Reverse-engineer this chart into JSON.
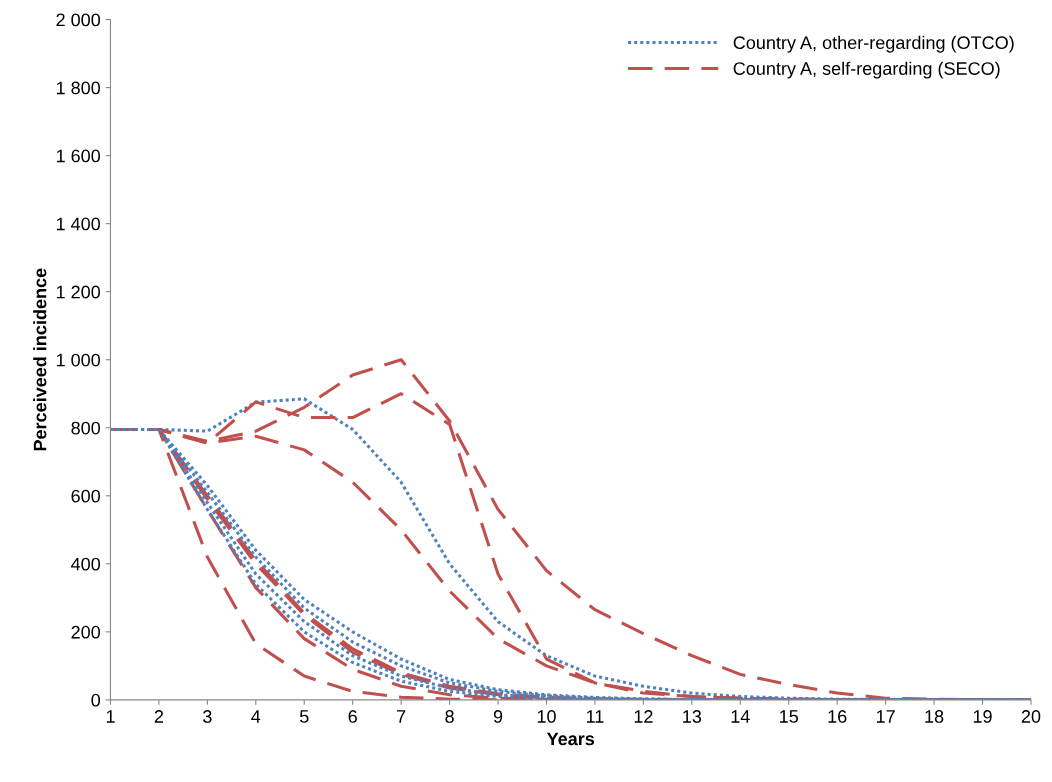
{
  "chart_data": {
    "type": "line",
    "xlabel": "Years",
    "ylabel": "Perceiveed incidence",
    "x": [
      1,
      2,
      3,
      4,
      5,
      6,
      7,
      8,
      9,
      10,
      11,
      12,
      13,
      14,
      15,
      16,
      17,
      18,
      19,
      20
    ],
    "xlim": [
      1,
      20
    ],
    "xticks": [
      1,
      2,
      3,
      4,
      5,
      6,
      7,
      8,
      9,
      10,
      11,
      12,
      13,
      14,
      15,
      16,
      17,
      18,
      19,
      20
    ],
    "ylim": [
      0,
      2000
    ],
    "yticks": [
      {
        "value": 0,
        "label": "0"
      },
      {
        "value": 200,
        "label": "200"
      },
      {
        "value": 400,
        "label": "400"
      },
      {
        "value": 600,
        "label": "600"
      },
      {
        "value": 800,
        "label": "800"
      },
      {
        "value": 1000,
        "label": "1 000"
      },
      {
        "value": 1200,
        "label": "1 200"
      },
      {
        "value": 1400,
        "label": "1 400"
      },
      {
        "value": 1600,
        "label": "1 600"
      },
      {
        "value": 1800,
        "label": "1 800"
      },
      {
        "value": 2000,
        "label": "2 000"
      }
    ],
    "grid": false,
    "legend": "top right",
    "marker": "none",
    "series": [
      {
        "name": "Country A, other-regarding (OTCO)",
        "color": "#4f81bd",
        "line_style": "dotted",
        "values": [
          795,
          795,
          790,
          875,
          885,
          795,
          640,
          400,
          230,
          130,
          70,
          40,
          20,
          10,
          5,
          2,
          1,
          0,
          0,
          0
        ]
      },
      {
        "name": "Country A, self-regarding (SECO)",
        "color": "#c0504d",
        "line_style": "dashed",
        "values": [
          795,
          795,
          760,
          790,
          860,
          955,
          1000,
          820,
          560,
          380,
          265,
          195,
          130,
          75,
          45,
          20,
          5,
          2,
          1,
          0
        ]
      },
      {
        "color": "#c0504d",
        "line_style": "dashed",
        "values": [
          795,
          795,
          755,
          876,
          830,
          830,
          900,
          810,
          370,
          120,
          50,
          25,
          10,
          5,
          2,
          1,
          0,
          0,
          0,
          0
        ]
      },
      {
        "color": "#c0504d",
        "line_style": "dashed",
        "values": [
          795,
          795,
          755,
          775,
          735,
          640,
          500,
          320,
          180,
          100,
          50,
          20,
          10,
          5,
          2,
          1,
          0,
          0,
          0,
          0
        ]
      },
      {
        "color": "#c0504d",
        "line_style": "dashed",
        "values": [
          795,
          795,
          420,
          165,
          70,
          25,
          8,
          2,
          0,
          0,
          0,
          0,
          0,
          0,
          0,
          0,
          0,
          0,
          0,
          0
        ]
      },
      {
        "color": "#c0504d",
        "line_style": "dashed",
        "values": [
          795,
          795,
          560,
          330,
          180,
          90,
          40,
          15,
          5,
          2,
          0,
          0,
          0,
          0,
          0,
          0,
          0,
          0,
          0,
          0
        ]
      },
      {
        "color": "#c0504d",
        "line_style": "dashed",
        "values": [
          795,
          795,
          590,
          400,
          250,
          140,
          75,
          35,
          15,
          6,
          2,
          1,
          0,
          0,
          0,
          0,
          0,
          0,
          0,
          0
        ]
      },
      {
        "color": "#c0504d",
        "line_style": "dashed",
        "values": [
          795,
          795,
          600,
          410,
          255,
          150,
          80,
          40,
          18,
          8,
          3,
          1,
          0,
          0,
          0,
          0,
          0,
          0,
          0,
          0
        ]
      },
      {
        "color": "#4f81bd",
        "line_style": "dotted",
        "values": [
          795,
          795,
          630,
          440,
          295,
          200,
          120,
          60,
          30,
          15,
          7,
          3,
          1,
          0,
          0,
          0,
          0,
          0,
          0,
          0
        ]
      },
      {
        "color": "#4f81bd",
        "line_style": "dotted",
        "values": [
          795,
          795,
          610,
          420,
          270,
          170,
          100,
          50,
          25,
          12,
          5,
          2,
          1,
          0,
          0,
          0,
          0,
          0,
          0,
          0
        ]
      },
      {
        "color": "#4f81bd",
        "line_style": "dotted",
        "values": [
          795,
          795,
          560,
          340,
          200,
          110,
          55,
          25,
          10,
          4,
          1,
          0,
          0,
          0,
          0,
          0,
          0,
          0,
          0,
          0
        ]
      },
      {
        "color": "#4f81bd",
        "line_style": "dotted",
        "values": [
          795,
          795,
          580,
          370,
          230,
          130,
          70,
          35,
          15,
          6,
          2,
          1,
          0,
          0,
          0,
          0,
          0,
          0,
          0,
          0
        ]
      }
    ]
  }
}
